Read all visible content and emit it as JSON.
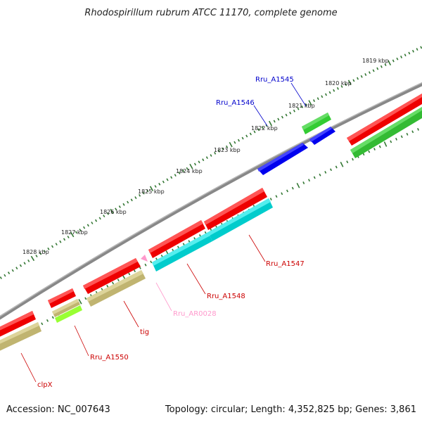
{
  "title": "Rhodospirillum rubrum ATCC 11170, complete genome",
  "footer": {
    "accession": "Accession: NC_007643",
    "summary": "Topology: circular; Length: 4,352,825 bp; Genes: 3,861"
  },
  "ruler": {
    "labels": [
      "1819 kbp",
      "1820 kbp",
      "1821 kbp",
      "1822 kbp",
      "1823 kbp",
      "1824 kbp",
      "1825 kbp",
      "1826 kbp",
      "1827 kbp",
      "1828 kbp"
    ]
  },
  "genes": [
    {
      "name": "Rru_A1545",
      "color": "#0000cc"
    },
    {
      "name": "Rru_A1546",
      "color": "#0000cc"
    },
    {
      "name": "Rru_A1547",
      "color": "#cc0000"
    },
    {
      "name": "Rru_A1548",
      "color": "#cc0000"
    },
    {
      "name": "Rru_AR0028",
      "color": "#ff99cc"
    },
    {
      "name": "tig",
      "color": "#cc0000"
    },
    {
      "name": "Rru_A1550",
      "color": "#cc0000"
    },
    {
      "name": "clpX",
      "color": "#cc0000"
    }
  ],
  "colors": {
    "cds_forward": "#ff0000",
    "cds_reverse": "#0000ff",
    "cog_green": "#33cc33",
    "cog_cyan": "#00cccc",
    "cog_olive": "#c8be78",
    "cog_lime": "#99ff33",
    "rna_pink": "#ff99cc",
    "backbone": "#888888",
    "ruler": "#337733"
  }
}
